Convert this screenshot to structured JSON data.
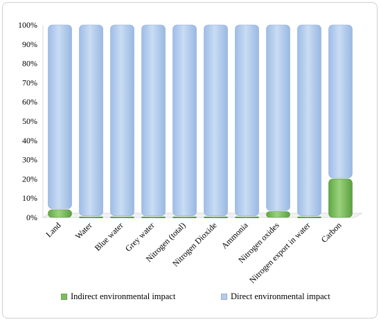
{
  "chart_data": {
    "type": "bar",
    "stacked": true,
    "percent": true,
    "categories": [
      "Land",
      "Water",
      "Blue water",
      "Grey water",
      "Nitrogen (total)",
      "Nitrogen Dioxide",
      "Ammonia",
      "Nitrogen oxides",
      "Nitrogen export in water",
      "Carbon"
    ],
    "series": [
      {
        "name": "Indirect environmental impact",
        "color": "#7bbf5f",
        "values": [
          4,
          0.3,
          0.3,
          0.3,
          0.3,
          0.3,
          0.3,
          3,
          0.3,
          20
        ]
      },
      {
        "name": "Direct environmental impact",
        "color": "#b3cdec",
        "values": [
          96,
          99.7,
          99.7,
          99.7,
          99.7,
          99.7,
          99.7,
          97,
          99.7,
          80
        ]
      }
    ],
    "yticks": [
      "0%",
      "10%",
      "20%",
      "30%",
      "40%",
      "50%",
      "60%",
      "70%",
      "80%",
      "90%",
      "100%"
    ],
    "ylim": [
      0,
      100
    ],
    "grid": false,
    "legend_position": "bottom"
  }
}
